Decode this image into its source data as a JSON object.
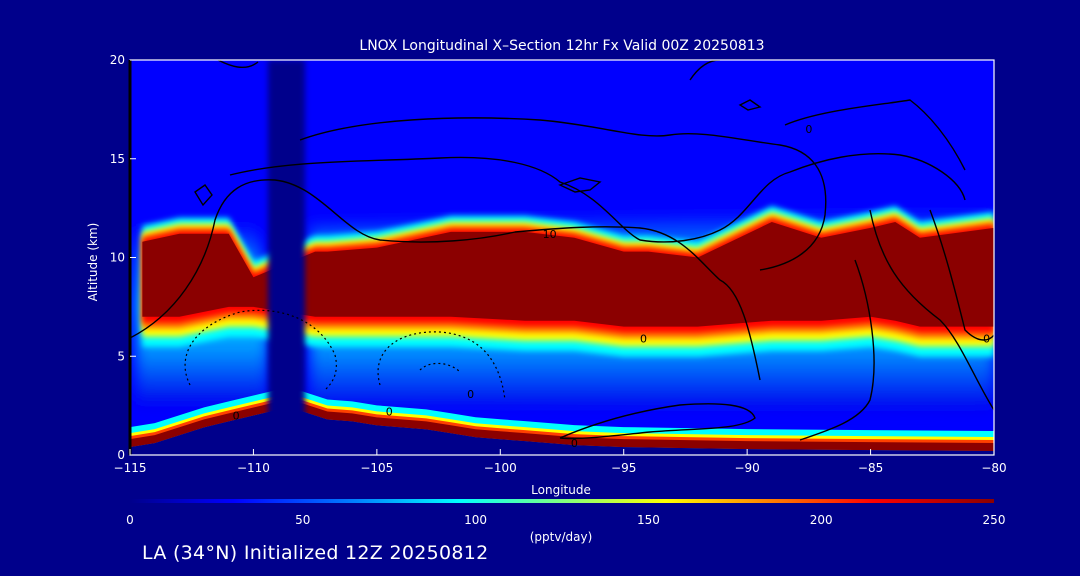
{
  "chart_data": {
    "type": "heatmap",
    "title": "LNOX Longitudinal X–Section 12hr  Fx Valid 00Z 20250813",
    "xlabel": "Longitude",
    "ylabel": "Altitude (km)",
    "xlim": [
      -115,
      -80
    ],
    "ylim": [
      0,
      20
    ],
    "x_ticks": [
      -115,
      -110,
      -105,
      -100,
      -95,
      -90,
      -85,
      -80
    ],
    "x_tick_labels": [
      "−115",
      "−110",
      "−105",
      "−100",
      "−95",
      "−90",
      "−85",
      "−80"
    ],
    "y_ticks": [
      0,
      5,
      10,
      15,
      20
    ],
    "y_tick_labels": [
      "0",
      "5",
      "10",
      "15",
      "20"
    ],
    "colorbar": {
      "min": 0,
      "max": 250,
      "ticks": [
        0,
        50,
        100,
        150,
        200,
        250
      ],
      "tick_labels": [
        "0",
        "50",
        "100",
        "150",
        "200",
        "250"
      ],
      "units": "(pptv/day)",
      "colors": [
        "#00008b",
        "#0000ff",
        "#0080ff",
        "#00ffff",
        "#80ff80",
        "#ffff00",
        "#ff8000",
        "#ff0000",
        "#8b0000"
      ]
    },
    "terrain_profile": {
      "lon": [
        -115,
        -114,
        -113,
        -112,
        -111,
        -110,
        -109,
        -108,
        -107,
        -106,
        -105,
        -104,
        -103,
        -102,
        -101,
        -100,
        -99,
        -98,
        -97,
        -96,
        -95,
        -90,
        -85,
        -80
      ],
      "alt_km": [
        0.4,
        0.6,
        1.0,
        1.4,
        1.7,
        2.0,
        2.3,
        2.2,
        1.8,
        1.7,
        1.5,
        1.4,
        1.3,
        1.1,
        0.9,
        0.8,
        0.7,
        0.6,
        0.5,
        0.45,
        0.4,
        0.3,
        0.25,
        0.2
      ]
    },
    "high_emission_band": {
      "value": 250,
      "lon": [
        -114.5,
        -113,
        -111,
        -110,
        -107.5,
        -107,
        -105,
        -102,
        -99,
        -97,
        -95,
        -94,
        -92,
        -89,
        -87,
        -85,
        -84,
        -83,
        -80
      ],
      "bottom_km": [
        7.0,
        7.0,
        7.5,
        7.5,
        7.0,
        7.0,
        7.0,
        7.0,
        6.8,
        6.8,
        6.5,
        6.5,
        6.5,
        6.8,
        6.8,
        7.0,
        6.8,
        6.5,
        6.5
      ],
      "top_km": [
        10.8,
        11.2,
        11.2,
        9.0,
        10.3,
        10.3,
        10.5,
        11.3,
        11.3,
        11.0,
        10.3,
        10.3,
        10.0,
        11.8,
        11.0,
        11.5,
        11.8,
        11.0,
        11.5
      ]
    },
    "convective_gap_lon": [
      -109.5,
      -107.5
    ],
    "contours": [
      {
        "label": "10",
        "lon": -98,
        "alt": 11.2
      },
      {
        "label": "0",
        "lon": -94.2,
        "alt": 5.9
      },
      {
        "label": "0",
        "lon": -87.5,
        "alt": 16.5
      },
      {
        "label": "0",
        "lon": -80.3,
        "alt": 5.9
      },
      {
        "label": "0",
        "lon": -97,
        "alt": 0.6
      },
      {
        "label": "0",
        "lon": -104.5,
        "alt": 2.2
      },
      {
        "label": "0",
        "lon": -110.7,
        "alt": 2.0
      },
      {
        "label": "0",
        "lon": -101.2,
        "alt": 3.1
      }
    ]
  },
  "footer": "LA (34°N) Initialized 12Z 20250812"
}
